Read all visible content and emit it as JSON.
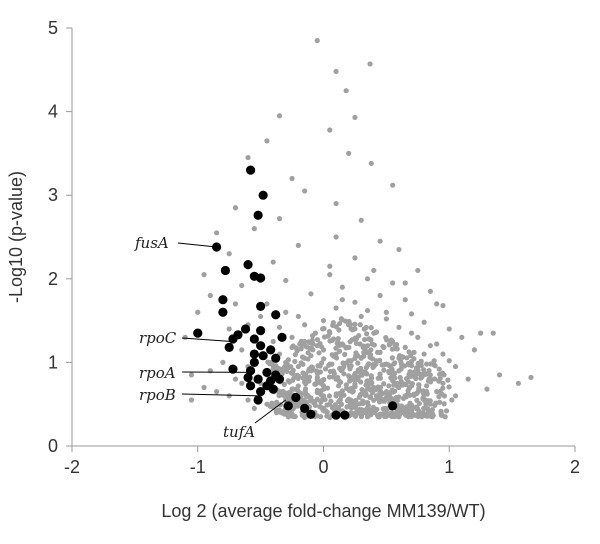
{
  "chart_data": {
    "type": "scatter",
    "title": "",
    "xlabel": "Log 2 (average fold-change MM139/WT)",
    "ylabel": "-Log10 (p-value)",
    "xlim": [
      -2,
      2
    ],
    "ylim": [
      0,
      5
    ],
    "x_ticks": [
      "-2",
      "-1",
      "0",
      "1",
      "2"
    ],
    "y_ticks": [
      "0",
      "1",
      "2",
      "3",
      "4",
      "5"
    ],
    "grid": false,
    "legend": "none",
    "colors": {
      "background_points": "#a0a0a0",
      "highlighted_points": "#000000",
      "axis": "#999999"
    },
    "series": [
      {
        "values": [
          {
            "x": -0.05,
            "y": 4.85
          },
          {
            "x": 0.1,
            "y": 4.48
          },
          {
            "x": 0.37,
            "y": 4.57
          },
          {
            "x": 0.18,
            "y": 4.25
          },
          {
            "x": -0.35,
            "y": 3.95
          },
          {
            "x": 0.05,
            "y": 3.78
          },
          {
            "x": 0.25,
            "y": 3.93
          },
          {
            "x": -0.45,
            "y": 3.65
          },
          {
            "x": 0.2,
            "y": 3.5
          },
          {
            "x": -0.6,
            "y": 3.45
          },
          {
            "x": 0.38,
            "y": 3.38
          },
          {
            "x": -0.25,
            "y": 3.2
          },
          {
            "x": 0.55,
            "y": 3.12
          },
          {
            "x": -0.15,
            "y": 3.05
          },
          {
            "x": 0.1,
            "y": 2.9
          },
          {
            "x": -0.7,
            "y": 2.85
          },
          {
            "x": -0.35,
            "y": 2.72
          },
          {
            "x": 0.3,
            "y": 2.7
          },
          {
            "x": -0.55,
            "y": 2.6
          },
          {
            "x": 0.1,
            "y": 2.5
          },
          {
            "x": -0.85,
            "y": 2.55
          },
          {
            "x": 0.45,
            "y": 2.45
          },
          {
            "x": -0.2,
            "y": 2.4
          },
          {
            "x": 0.6,
            "y": 2.35
          },
          {
            "x": -0.75,
            "y": 2.3
          },
          {
            "x": 0.25,
            "y": 2.25
          },
          {
            "x": -0.4,
            "y": 2.2
          },
          {
            "x": 0.05,
            "y": 2.15
          },
          {
            "x": 0.75,
            "y": 2.1
          },
          {
            "x": -0.95,
            "y": 2.05
          },
          {
            "x": 0.35,
            "y": 2.0
          },
          {
            "x": -0.3,
            "y": 1.98
          },
          {
            "x": 0.55,
            "y": 1.95
          },
          {
            "x": -0.65,
            "y": 1.92
          },
          {
            "x": 0.15,
            "y": 1.9
          },
          {
            "x": 0.85,
            "y": 1.85
          },
          {
            "x": -0.1,
            "y": 1.82
          },
          {
            "x": 0.45,
            "y": 1.8
          },
          {
            "x": -0.9,
            "y": 1.8
          },
          {
            "x": 0.65,
            "y": 1.75
          },
          {
            "x": 0.25,
            "y": 1.72
          },
          {
            "x": -0.45,
            "y": 1.7
          },
          {
            "x": 0.9,
            "y": 1.7
          },
          {
            "x": 0.95,
            "y": 1.68
          },
          {
            "x": -1.0,
            "y": 1.6
          },
          {
            "x": 0.35,
            "y": 1.62
          },
          {
            "x": 0.7,
            "y": 1.58
          },
          {
            "x": -0.2,
            "y": 1.55
          },
          {
            "x": 0.5,
            "y": 1.52
          },
          {
            "x": 0.0,
            "y": 1.5
          },
          {
            "x": 0.8,
            "y": 1.48
          },
          {
            "x": -0.6,
            "y": 1.45
          },
          {
            "x": 0.2,
            "y": 1.45
          },
          {
            "x": 0.6,
            "y": 1.42
          },
          {
            "x": -0.35,
            "y": 1.42
          },
          {
            "x": 1.0,
            "y": 1.4
          },
          {
            "x": 1.25,
            "y": 1.35
          },
          {
            "x": 1.1,
            "y": 1.3
          },
          {
            "x": 1.35,
            "y": 1.35
          },
          {
            "x": 1.2,
            "y": 1.15
          },
          {
            "x": -1.1,
            "y": 1.3
          },
          {
            "x": 0.4,
            "y": 1.35
          },
          {
            "x": 0.05,
            "y": 1.35
          },
          {
            "x": 0.75,
            "y": 1.3
          },
          {
            "x": 0.25,
            "y": 1.28
          },
          {
            "x": -0.15,
            "y": 1.25
          },
          {
            "x": 0.55,
            "y": 1.25
          },
          {
            "x": 0.9,
            "y": 1.22
          },
          {
            "x": 0.15,
            "y": 1.22
          },
          {
            "x": 0.35,
            "y": 1.2
          },
          {
            "x": -0.25,
            "y": 1.18
          },
          {
            "x": 0.65,
            "y": 1.18
          },
          {
            "x": 0.0,
            "y": 1.15
          },
          {
            "x": 0.45,
            "y": 1.12
          },
          {
            "x": 0.8,
            "y": 1.1
          },
          {
            "x": 0.1,
            "y": 1.1
          },
          {
            "x": -0.1,
            "y": 1.08
          },
          {
            "x": 0.3,
            "y": 1.05
          },
          {
            "x": 0.6,
            "y": 1.05
          },
          {
            "x": 1.0,
            "y": 1.02
          },
          {
            "x": 0.2,
            "y": 1.02
          },
          {
            "x": -0.3,
            "y": 1.0
          },
          {
            "x": 0.5,
            "y": 0.98
          },
          {
            "x": 0.05,
            "y": 0.98
          },
          {
            "x": 0.4,
            "y": 0.95
          },
          {
            "x": 0.75,
            "y": 0.95
          },
          {
            "x": -0.2,
            "y": 0.95
          },
          {
            "x": 0.15,
            "y": 0.92
          },
          {
            "x": 0.3,
            "y": 0.9
          },
          {
            "x": 0.6,
            "y": 0.9
          },
          {
            "x": -0.05,
            "y": 0.88
          },
          {
            "x": 0.45,
            "y": 0.86
          },
          {
            "x": 0.85,
            "y": 0.85
          },
          {
            "x": 0.2,
            "y": 0.84
          },
          {
            "x": -0.35,
            "y": 0.82
          },
          {
            "x": 1.4,
            "y": 0.85
          },
          {
            "x": 1.65,
            "y": 0.82
          },
          {
            "x": 1.55,
            "y": 0.75
          },
          {
            "x": 0.1,
            "y": 0.8
          },
          {
            "x": 0.35,
            "y": 0.78
          },
          {
            "x": 0.55,
            "y": 0.78
          },
          {
            "x": -0.15,
            "y": 0.76
          },
          {
            "x": 0.25,
            "y": 0.74
          },
          {
            "x": 0.7,
            "y": 0.72
          },
          {
            "x": 0.0,
            "y": 0.72
          },
          {
            "x": 0.4,
            "y": 0.7
          },
          {
            "x": 1.3,
            "y": 0.68
          },
          {
            "x": -0.25,
            "y": 0.68
          },
          {
            "x": 0.15,
            "y": 0.66
          },
          {
            "x": 0.5,
            "y": 0.65
          },
          {
            "x": 0.9,
            "y": 0.65
          },
          {
            "x": -0.05,
            "y": 0.64
          },
          {
            "x": 0.3,
            "y": 0.62
          },
          {
            "x": 0.65,
            "y": 0.6
          },
          {
            "x": 0.1,
            "y": 0.6
          },
          {
            "x": -0.3,
            "y": 0.58
          },
          {
            "x": 0.45,
            "y": 0.58
          },
          {
            "x": 0.2,
            "y": 0.56
          },
          {
            "x": 0.8,
            "y": 0.55
          },
          {
            "x": -0.1,
            "y": 0.54
          },
          {
            "x": 0.35,
            "y": 0.52
          },
          {
            "x": 0.05,
            "y": 0.5
          },
          {
            "x": 0.55,
            "y": 0.5
          },
          {
            "x": -0.2,
            "y": 0.48
          },
          {
            "x": 0.25,
            "y": 0.48
          },
          {
            "x": 0.7,
            "y": 0.46
          },
          {
            "x": 0.0,
            "y": 0.45
          },
          {
            "x": 0.4,
            "y": 0.44
          },
          {
            "x": -0.35,
            "y": 0.43
          },
          {
            "x": 0.15,
            "y": 0.42
          },
          {
            "x": 0.6,
            "y": 0.42
          },
          {
            "x": -0.1,
            "y": 0.4
          },
          {
            "x": 0.3,
            "y": 0.4
          },
          {
            "x": 0.1,
            "y": 0.38
          },
          {
            "x": -0.05,
            "y": 0.36
          },
          {
            "x": 0.2,
            "y": 0.36
          },
          {
            "x": 0.45,
            "y": 0.38
          },
          {
            "x": -0.25,
            "y": 0.38
          },
          {
            "x": 0.05,
            "y": 0.34
          },
          {
            "x": -0.15,
            "y": 0.34
          },
          {
            "x": -0.8,
            "y": 1.0
          },
          {
            "x": -0.9,
            "y": 0.9
          },
          {
            "x": -1.05,
            "y": 0.85
          },
          {
            "x": -0.7,
            "y": 0.8
          },
          {
            "x": -0.95,
            "y": 0.7
          },
          {
            "x": -0.85,
            "y": 0.65
          },
          {
            "x": -1.05,
            "y": 0.55
          },
          {
            "x": -0.75,
            "y": 0.6
          },
          {
            "x": -0.6,
            "y": 0.55
          },
          {
            "x": -0.65,
            "y": 0.75
          },
          {
            "x": -0.5,
            "y": 0.62
          },
          {
            "x": -0.45,
            "y": 0.5
          },
          {
            "x": -0.55,
            "y": 0.45
          },
          {
            "x": -0.4,
            "y": 0.68
          },
          {
            "x": -0.3,
            "y": 0.55
          },
          {
            "x": -0.45,
            "y": 0.85
          },
          {
            "x": -0.35,
            "y": 1.1
          },
          {
            "x": -0.25,
            "y": 1.3
          },
          {
            "x": -0.15,
            "y": 1.05
          },
          {
            "x": -0.05,
            "y": 1.2
          },
          {
            "x": -0.4,
            "y": 1.25
          },
          {
            "x": -0.55,
            "y": 1.05
          },
          {
            "x": -0.65,
            "y": 1.15
          },
          {
            "x": -0.75,
            "y": 1.4
          },
          {
            "x": -0.5,
            "y": 1.55
          },
          {
            "x": -0.7,
            "y": 1.7
          },
          {
            "x": -0.3,
            "y": 1.6
          },
          {
            "x": -0.15,
            "y": 1.45
          },
          {
            "x": 0.1,
            "y": 1.65
          },
          {
            "x": 0.3,
            "y": 1.55
          },
          {
            "x": 0.05,
            "y": 2.05
          },
          {
            "x": 0.4,
            "y": 2.1
          },
          {
            "x": 0.65,
            "y": 1.95
          },
          {
            "x": 0.15,
            "y": 1.75
          },
          {
            "x": 0.5,
            "y": 1.6
          },
          {
            "x": 0.25,
            "y": 1.4
          },
          {
            "x": 0.7,
            "y": 1.35
          },
          {
            "x": 0.85,
            "y": 1.2
          },
          {
            "x": 0.95,
            "y": 1.1
          },
          {
            "x": 1.05,
            "y": 0.95
          },
          {
            "x": 1.15,
            "y": 0.8
          },
          {
            "x": 0.95,
            "y": 0.75
          },
          {
            "x": 1.05,
            "y": 0.6
          },
          {
            "x": 0.85,
            "y": 0.5
          },
          {
            "x": 0.75,
            "y": 0.38
          },
          {
            "x": 0.6,
            "y": 0.35
          },
          {
            "x": 0.5,
            "y": 0.4
          },
          {
            "x": 0.35,
            "y": 0.35
          },
          {
            "x": -0.6,
            "y": 0.95
          },
          {
            "x": -0.5,
            "y": 0.75
          },
          {
            "x": -0.2,
            "y": 0.65
          },
          {
            "x": -0.1,
            "y": 0.9
          },
          {
            "x": 0.0,
            "y": 0.6
          },
          {
            "x": 0.12,
            "y": 0.72
          },
          {
            "x": 0.22,
            "y": 0.96
          },
          {
            "x": 0.32,
            "y": 1.12
          },
          {
            "x": 0.42,
            "y": 1.02
          },
          {
            "x": 0.52,
            "y": 0.88
          },
          {
            "x": 0.62,
            "y": 0.76
          },
          {
            "x": 0.72,
            "y": 0.62
          },
          {
            "x": 0.82,
            "y": 0.72
          },
          {
            "x": 0.92,
            "y": 0.92
          },
          {
            "x": 0.18,
            "y": 1.18
          },
          {
            "x": 0.08,
            "y": 1.28
          },
          {
            "x": 0.28,
            "y": 1.32
          },
          {
            "x": 0.48,
            "y": 1.18
          },
          {
            "x": 0.38,
            "y": 0.84
          },
          {
            "x": 0.58,
            "y": 0.58
          },
          {
            "x": 0.68,
            "y": 0.48
          },
          {
            "x": 0.78,
            "y": 0.82
          },
          {
            "x": 0.88,
            "y": 1.02
          },
          {
            "x": -0.08,
            "y": 0.52
          },
          {
            "x": -0.18,
            "y": 0.58
          },
          {
            "x": -0.28,
            "y": 0.78
          },
          {
            "x": -0.38,
            "y": 0.92
          },
          {
            "x": 0.02,
            "y": 0.42
          },
          {
            "x": 0.12,
            "y": 0.46
          },
          {
            "x": 0.22,
            "y": 0.52
          },
          {
            "x": 0.32,
            "y": 0.66
          },
          {
            "x": 0.42,
            "y": 0.6
          },
          {
            "x": 0.52,
            "y": 0.72
          },
          {
            "x": 0.62,
            "y": 0.98
          },
          {
            "x": 0.72,
            "y": 1.12
          },
          {
            "x": 0.82,
            "y": 0.98
          }
        ]
      },
      {
        "values": [
          {
            "x": -0.58,
            "y": 3.3
          },
          {
            "x": -0.48,
            "y": 3.0
          },
          {
            "x": -0.52,
            "y": 2.76
          },
          {
            "x": -0.85,
            "y": 2.38
          },
          {
            "x": -0.78,
            "y": 2.1
          },
          {
            "x": -0.6,
            "y": 2.17
          },
          {
            "x": -0.55,
            "y": 2.03
          },
          {
            "x": -0.5,
            "y": 2.01
          },
          {
            "x": -0.8,
            "y": 1.75
          },
          {
            "x": -0.5,
            "y": 1.67
          },
          {
            "x": -0.8,
            "y": 1.6
          },
          {
            "x": -0.38,
            "y": 1.57
          },
          {
            "x": -0.62,
            "y": 1.4
          },
          {
            "x": -0.5,
            "y": 1.38
          },
          {
            "x": -1.0,
            "y": 1.35
          },
          {
            "x": -0.68,
            "y": 1.33
          },
          {
            "x": -0.72,
            "y": 1.28
          },
          {
            "x": -0.55,
            "y": 1.28
          },
          {
            "x": -0.33,
            "y": 1.3
          },
          {
            "x": -0.75,
            "y": 1.18
          },
          {
            "x": -0.5,
            "y": 1.2
          },
          {
            "x": -0.42,
            "y": 1.15
          },
          {
            "x": -0.55,
            "y": 1.1
          },
          {
            "x": -0.48,
            "y": 1.08
          },
          {
            "x": -0.38,
            "y": 1.05
          },
          {
            "x": -0.55,
            "y": 1.0
          },
          {
            "x": -0.72,
            "y": 0.92
          },
          {
            "x": -0.58,
            "y": 0.9
          },
          {
            "x": -0.45,
            "y": 0.88
          },
          {
            "x": -0.38,
            "y": 0.85
          },
          {
            "x": -0.6,
            "y": 0.82
          },
          {
            "x": -0.52,
            "y": 0.8
          },
          {
            "x": -0.42,
            "y": 0.78
          },
          {
            "x": -0.35,
            "y": 0.8
          },
          {
            "x": -0.58,
            "y": 0.72
          },
          {
            "x": -0.45,
            "y": 0.72
          },
          {
            "x": -0.5,
            "y": 0.65
          },
          {
            "x": -0.4,
            "y": 0.68
          },
          {
            "x": -0.52,
            "y": 0.55
          },
          {
            "x": -0.22,
            "y": 0.58
          },
          {
            "x": -0.28,
            "y": 0.48
          },
          {
            "x": -0.15,
            "y": 0.45
          },
          {
            "x": -0.1,
            "y": 0.38
          },
          {
            "x": 0.1,
            "y": 0.37
          },
          {
            "x": 0.17,
            "y": 0.37
          },
          {
            "x": 0.55,
            "y": 0.48
          }
        ]
      }
    ],
    "annotations": [
      {
        "text": "fusA",
        "x": -0.85,
        "y": 2.38
      },
      {
        "text": "rpoC",
        "x": -0.73,
        "y": 1.25
      },
      {
        "text": "rpoA",
        "x": -0.55,
        "y": 0.88
      },
      {
        "text": "rpoB",
        "x": -0.52,
        "y": 0.6
      },
      {
        "text": "tufA",
        "x": -0.3,
        "y": 0.55
      }
    ]
  }
}
